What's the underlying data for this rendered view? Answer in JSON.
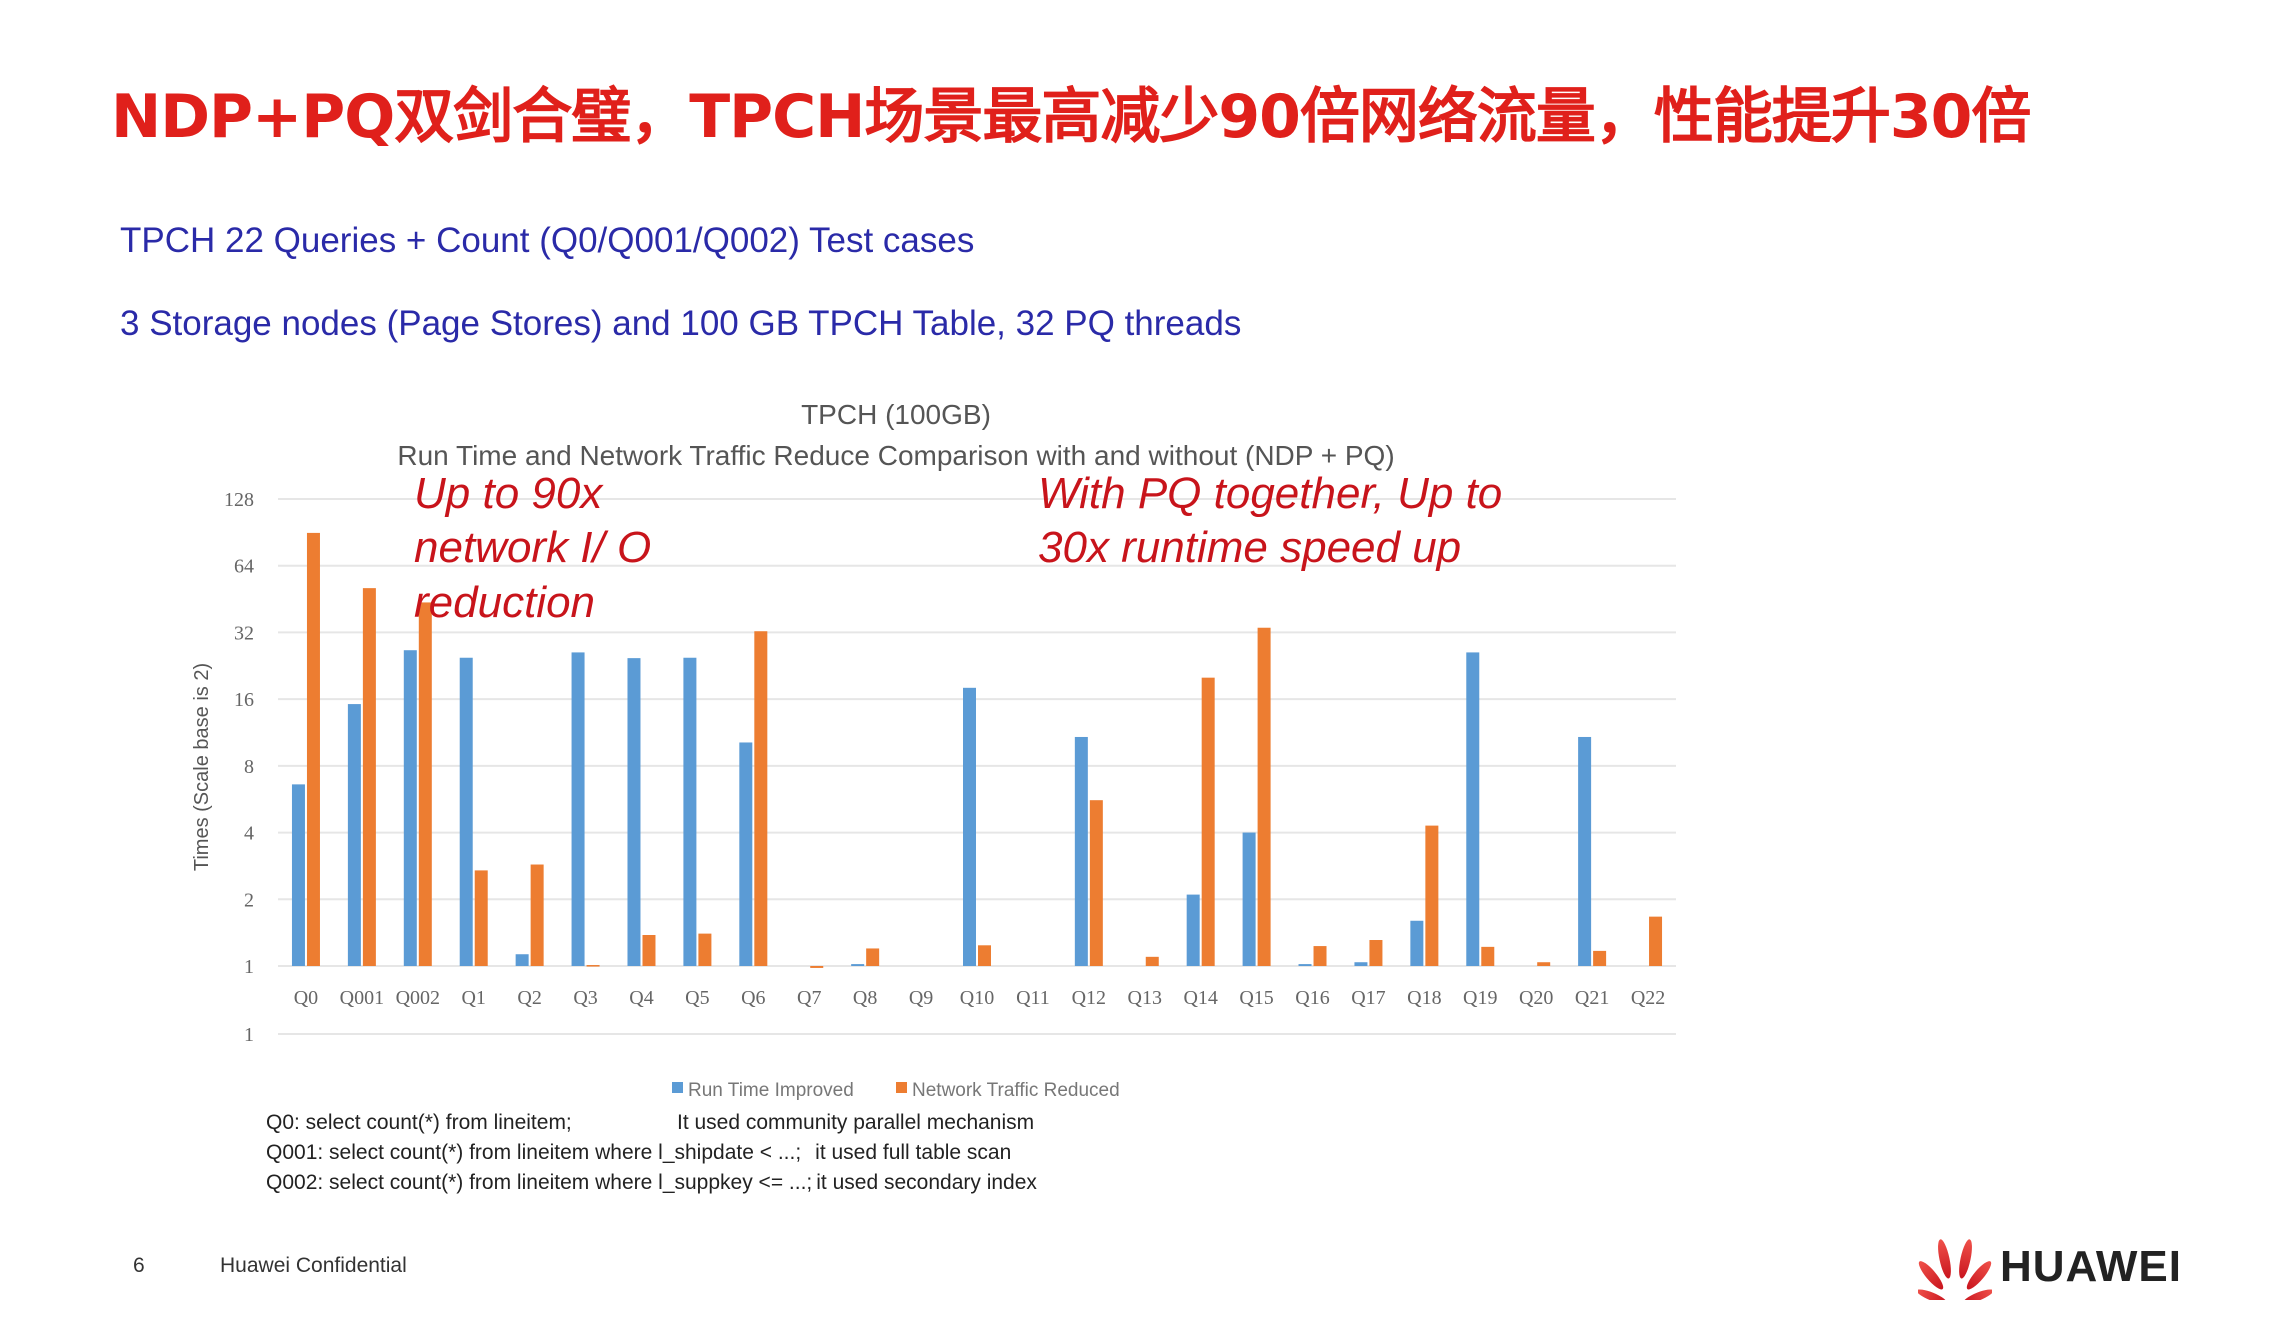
{
  "slide": {
    "title": "NDP+PQ双剑合璧，TPCH场景最高减少90倍网络流量，性能提升30倍",
    "subtitle_lines": [
      "TPCH 22 Queries + Count (Q0/Q001/Q002) Test cases",
      "3 Storage nodes (Page Stores) and 100 GB TPCH Table, 32 PQ threads"
    ],
    "annotations": [
      [
        "Up to 90x",
        "network I/ O",
        "reduction"
      ],
      [
        "With PQ together, Up to",
        "30x runtime speed up"
      ]
    ],
    "footnotes": [
      [
        "Q0: select count(*) from lineitem;",
        "It used community parallel mechanism"
      ],
      [
        "Q001: select count(*) from lineitem where l_shipdate < ...;",
        "it used full table scan"
      ],
      [
        "Q002: select count(*) from lineitem where l_suppkey <= ...;",
        "it used secondary index"
      ]
    ],
    "page_number": "6",
    "confidential": "Huawei Confidential",
    "logo_text": "HUAWEI",
    "colors": {
      "title": "#e0201b",
      "subtitle": "#2a2aa8",
      "annotation": "#c8141b",
      "run_time": "#5b9bd5",
      "network": "#ed7d31"
    }
  },
  "chart_data": {
    "type": "bar",
    "title": "TPCH (100GB)",
    "subtitle": "Run Time and Network Traffic Reduce Comparison with and without (NDP + PQ)",
    "ylabel": "Times (Scale base is 2)",
    "xlabel": "",
    "y_scale": "log2",
    "ylim": [
      1,
      128
    ],
    "y_ticks": [
      "128",
      "64",
      "32",
      "16",
      "8",
      "4",
      "2",
      "1",
      "1"
    ],
    "grid": true,
    "legend": "bottom",
    "categories": [
      "Q0",
      "Q001",
      "Q002",
      "Q1",
      "Q2",
      "Q3",
      "Q4",
      "Q5",
      "Q6",
      "Q7",
      "Q8",
      "Q9",
      "Q10",
      "Q11",
      "Q12",
      "Q13",
      "Q14",
      "Q15",
      "Q16",
      "Q17",
      "Q18",
      "Q19",
      "Q20",
      "Q21",
      "Q22"
    ],
    "series": [
      {
        "name": "Run Time Improved",
        "color": "#5b9bd5",
        "values": [
          6.6,
          15.2,
          26.6,
          24.6,
          1.13,
          26,
          24.5,
          24.6,
          10.2,
          1,
          1.02,
          1,
          18,
          1,
          10.8,
          1,
          2.1,
          4,
          1.02,
          1.04,
          1.6,
          26,
          1,
          10.8,
          1
        ]
      },
      {
        "name": "Network Traffic Reduced",
        "color": "#ed7d31",
        "values": [
          90,
          50.7,
          43.7,
          2.7,
          2.87,
          1.01,
          1.38,
          1.4,
          32.4,
          0.98,
          1.2,
          1,
          1.24,
          1,
          5.6,
          1.1,
          20,
          33.6,
          1.23,
          1.31,
          4.3,
          1.22,
          1.04,
          1.17,
          1.67
        ]
      }
    ]
  }
}
